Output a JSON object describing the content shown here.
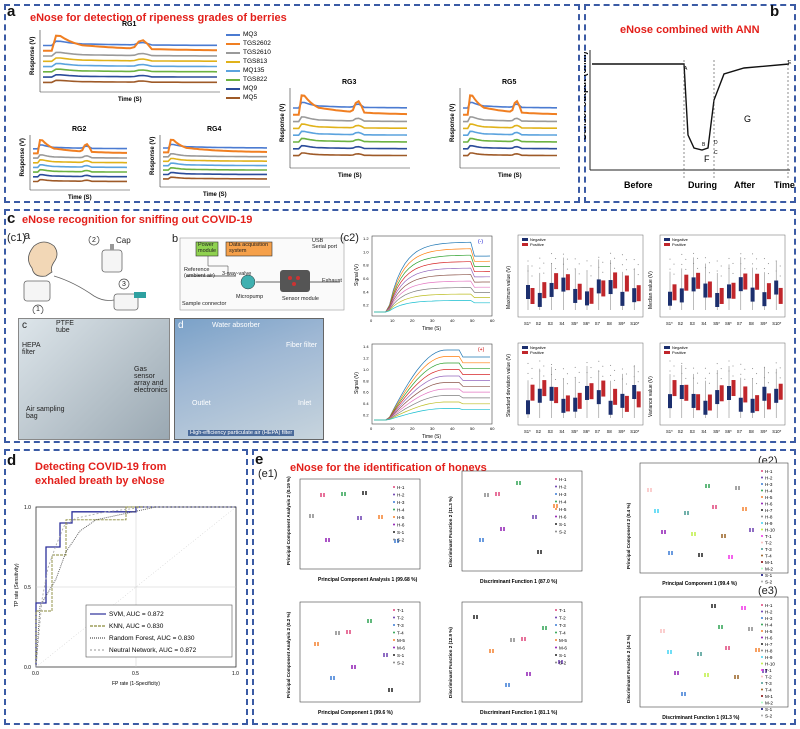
{
  "panel_a": {
    "label": "a",
    "title": "eNose for detection of ripeness grades of berries",
    "subplots": [
      "RG1",
      "RG2",
      "RG3",
      "RG4",
      "RG5"
    ],
    "ylabel": "Response (V)",
    "xlabel": "Time (S)",
    "legend": [
      "MQ3",
      "TGS2602",
      "TGS2610",
      "TGS813",
      "MQ135",
      "TGS822",
      "MQ9",
      "MQ5"
    ],
    "legend_colors": [
      "#4b7bd1",
      "#f07f22",
      "#9a9a9a",
      "#e0b21a",
      "#5ba3de",
      "#6cb241",
      "#2b4c9a",
      "#9e5a28"
    ]
  },
  "panel_b": {
    "label": "b",
    "title": "eNose combined with ANN",
    "ylabel": "Sensor output (ohm)",
    "xlabel_phases": [
      "Before",
      "During",
      "After",
      "Time"
    ],
    "region_labels": [
      "A",
      "B",
      "C",
      "D",
      "E",
      "F",
      "G"
    ]
  },
  "panel_c": {
    "label": "c",
    "title": "eNose recognition for sniffing out COVID-19",
    "c1_label": "(c1)",
    "sub_a": "a",
    "sub_b": "b",
    "sub_c": "c",
    "sub_d": "d",
    "cap": "Cap",
    "nums": [
      "1",
      "2",
      "3"
    ],
    "usb": "USB\nSerial port",
    "power": "Power\nmodule",
    "daq": "Data acquisition\nsystem",
    "reference": "Reference\n(ambient air)",
    "valve": "3-way-valve",
    "micropump": "Micropump",
    "sensor_module": "Sensor module",
    "sample_connector": "Sample connector",
    "exhaust": "Exhaust",
    "ptfe": "PTFE\ntube",
    "hepa": "HEPA\nfilter",
    "gas_sensor": "Gas\nsensor\narray and\nelectronics",
    "air_bag": "Air sampling\nbag",
    "water_absorber": "Water absorber",
    "fiber_filter": "Fiber filter",
    "outlet": "Outlet",
    "inlet": "Inlet",
    "hepa_caption": "High-efficiency particulate air (HEPA) filter",
    "c2_label": "(c2)",
    "signal_label": "Signal (V)",
    "time_label": "Time (S)",
    "neg_tag": "(-)",
    "pos_tag": "(+)",
    "box_ylabels": [
      "Maximum value (V)",
      "Median value (V)",
      "Standard deviation value (V)",
      "Variance value (V)"
    ],
    "box_legend": [
      "Negative",
      "Positive"
    ],
    "box_xticks": [
      "S1*",
      "S2",
      "S3",
      "S4",
      "S5*",
      "S6*",
      "S7",
      "S8",
      "S9*",
      "S10*"
    ],
    "sig_xticks": [
      "0",
      "10",
      "20",
      "30",
      "40",
      "50",
      "60"
    ],
    "sig_yticks_top": [
      "1.2",
      "1.0",
      "0.8",
      "0.6",
      "0.4",
      "0.2"
    ],
    "sig_yticks_bot": [
      "1.4",
      "1.2",
      "1.0",
      "0.8",
      "0.6",
      "0.4",
      "0.2"
    ]
  },
  "panel_d": {
    "label": "d",
    "title": "Detecting COVID-19 from\nexhaled breath by eNose",
    "xlabel": "FP rate (1-Specificity)",
    "ylabel": "TP rate (Sensitivity)",
    "yticks": [
      "1.0",
      "0.5",
      "0.0"
    ],
    "xticks": [
      "0.0",
      "0.5",
      "1.0"
    ]
  },
  "panel_e": {
    "label": "e",
    "title": "eNose for the identification of honeys",
    "e1": "(e1)",
    "e2": "(e2)",
    "e3": "(e3)",
    "pca_x1": "Principal Component Analysis 1 (99.68 %)",
    "pca_y1": "Principal Component\nAnalysis 2 (0.19 %)",
    "df_x1": "Discriminant Function 1 (87.0 %)",
    "df_y1": "Discriminant Function 2 (11.3 %)",
    "pca_x2": "Principal Component 1 (99.6 %)",
    "pca_y2": "Principal Component Analysis 2 (0.2 %)",
    "df_x2": "Discriminant Function 1 (81.1 %)",
    "df_y2": "Discriminant Function 2 (12.9 %)",
    "e2_x": "Principal Component 1 (99.4 %)",
    "e2_y": "Principal Component 2 (0.4 %)",
    "e3_x": "Discriminant Function 1 (91.3 %)",
    "e3_y": "Discriminant Function 2 (4.2 %)",
    "legend_h": [
      "H-1",
      "H-2",
      "H-3",
      "H-4",
      "H-5",
      "H-6",
      "S-1",
      "S-2"
    ],
    "legend_t": [
      "T-1",
      "T-2",
      "T-3",
      "T-4",
      "M-5",
      "M-6",
      "S-1",
      "S-2"
    ],
    "legend_big": [
      "H-1",
      "H-2",
      "H-3",
      "H-4",
      "H-5",
      "H-6",
      "H-7",
      "H-8",
      "H-9",
      "H-10",
      "T-1",
      "T-2",
      "T-3",
      "T-4",
      "M-1",
      "M-2",
      "S-1",
      "S-2"
    ]
  },
  "chart_data": [
    {
      "type": "line",
      "title": "",
      "xlabel": "FP rate (1-Specificity)",
      "ylabel": "TP rate (Sensitivity)",
      "xlim": [
        0,
        1
      ],
      "ylim": [
        0,
        1
      ],
      "series": [
        {
          "name": "SVM, AUC = 0.872",
          "color": "#2b2f9a",
          "dash": "",
          "x": [
            0,
            0,
            0.05,
            0.05,
            0.12,
            0.12,
            0.18,
            0.18,
            0.5,
            0.5,
            1
          ],
          "y": [
            0,
            0.4,
            0.4,
            0.75,
            0.75,
            0.9,
            0.9,
            0.97,
            0.97,
            1,
            1
          ]
        },
        {
          "name": "KNN, AUC = 0.830",
          "color": "#8a8a3a",
          "dash": "3,1",
          "x": [
            0,
            0,
            0.08,
            0.08,
            0.15,
            0.15,
            0.45,
            0.45,
            1
          ],
          "y": [
            0,
            0.35,
            0.35,
            0.7,
            0.7,
            0.92,
            0.92,
            1,
            1
          ]
        },
        {
          "name": "Random Forest, AUC = 0.830",
          "color": "#555555",
          "dash": "1,1",
          "x": [
            0,
            0.02,
            0.1,
            0.15,
            0.22,
            0.3,
            0.45,
            0.6,
            1
          ],
          "y": [
            0,
            0.38,
            0.55,
            0.72,
            0.85,
            0.92,
            0.96,
            1,
            1
          ]
        },
        {
          "name": "Neutral Network, AUC = 0.872",
          "color": "#aaaaaa",
          "dash": "2,2",
          "x": [
            0,
            0.03,
            0.06,
            0.1,
            0.14,
            0.2,
            0.35,
            0.55,
            1
          ],
          "y": [
            0,
            0.42,
            0.62,
            0.76,
            0.88,
            0.93,
            0.97,
            1,
            1
          ]
        }
      ]
    }
  ]
}
